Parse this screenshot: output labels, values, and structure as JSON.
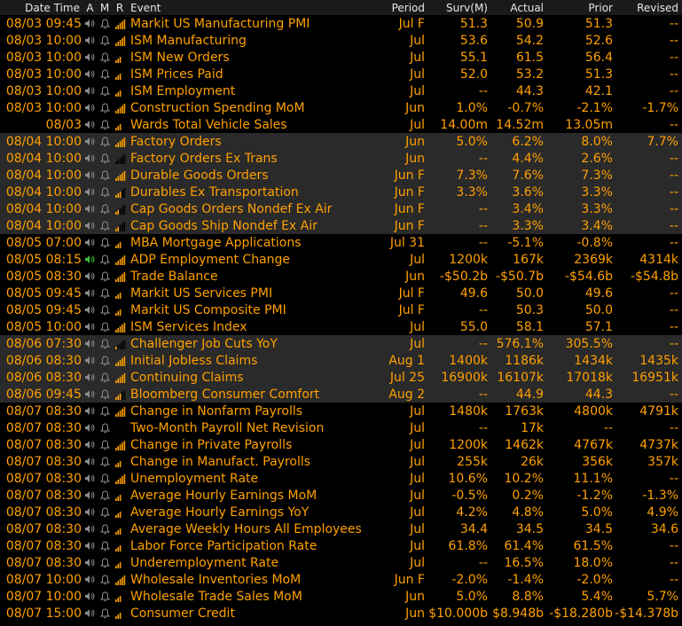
{
  "header": {
    "date_time": "Date Time",
    "a": "A",
    "m": "M",
    "r": "R",
    "event": "Event",
    "period": "Period",
    "surv": "Surv(M)",
    "actual": "Actual",
    "prior": "Prior",
    "revised": "Revised"
  },
  "colors": {
    "text": "#ffa000",
    "header_text": "#e6e6e6",
    "alt_row_bg": "#2a2a2a",
    "icon_grey": "#8c8c8c",
    "speaker_active": "#3ec23e"
  },
  "rows": [
    {
      "date": "08/03 09:45",
      "event": "Markit US Manufacturing PMI",
      "period": "Jul F",
      "surv": "51.3",
      "actual": "50.9",
      "prior": "51.3",
      "revised": "--",
      "bars": 5,
      "alt": false,
      "speaker_active": false
    },
    {
      "date": "08/03 10:00",
      "event": "ISM Manufacturing",
      "period": "Jul",
      "surv": "53.6",
      "actual": "54.2",
      "prior": "52.6",
      "revised": "--",
      "bars": 5,
      "alt": false,
      "speaker_active": false
    },
    {
      "date": "08/03 10:00",
      "event": "ISM New Orders",
      "period": "Jul",
      "surv": "55.1",
      "actual": "61.5",
      "prior": "56.4",
      "revised": "--",
      "bars": 3,
      "alt": false,
      "speaker_active": false
    },
    {
      "date": "08/03 10:00",
      "event": "ISM Prices Paid",
      "period": "Jul",
      "surv": "52.0",
      "actual": "53.2",
      "prior": "51.3",
      "revised": "--",
      "bars": 3,
      "alt": false,
      "speaker_active": false
    },
    {
      "date": "08/03 10:00",
      "event": "ISM Employment",
      "period": "Jul",
      "surv": "--",
      "actual": "44.3",
      "prior": "42.1",
      "revised": "--",
      "bars": 3,
      "alt": false,
      "speaker_active": false
    },
    {
      "date": "08/03 10:00",
      "event": "Construction Spending MoM",
      "period": "Jun",
      "surv": "1.0%",
      "actual": "-0.7%",
      "prior": "-2.1%",
      "revised": "-1.7%",
      "bars": 5,
      "alt": false,
      "speaker_active": false
    },
    {
      "date": "08/03",
      "event": "Wards Total Vehicle Sales",
      "period": "Jul",
      "surv": "14.00m",
      "actual": "14.52m",
      "prior": "13.05m",
      "revised": "--",
      "bars": 3,
      "alt": false,
      "speaker_active": false
    },
    {
      "date": "08/04 10:00",
      "event": "Factory Orders",
      "period": "Jun",
      "surv": "5.0%",
      "actual": "6.2%",
      "prior": "8.0%",
      "revised": "7.7%",
      "bars": 5,
      "alt": true,
      "speaker_active": false
    },
    {
      "date": "08/04 10:00",
      "event": "Factory Orders Ex Trans",
      "period": "Jun",
      "surv": "--",
      "actual": "4.4%",
      "prior": "2.6%",
      "revised": "--",
      "bars": 0,
      "alt": true,
      "speaker_active": false
    },
    {
      "date": "08/04 10:00",
      "event": "Durable Goods Orders",
      "period": "Jun F",
      "surv": "7.3%",
      "actual": "7.6%",
      "prior": "7.3%",
      "revised": "--",
      "bars": 5,
      "alt": true,
      "speaker_active": false
    },
    {
      "date": "08/04 10:00",
      "event": "Durables Ex Transportation",
      "period": "Jun F",
      "surv": "3.3%",
      "actual": "3.6%",
      "prior": "3.3%",
      "revised": "--",
      "bars": 3,
      "alt": true,
      "speaker_active": false
    },
    {
      "date": "08/04 10:00",
      "event": "Cap Goods Orders Nondef Ex Air",
      "period": "Jun F",
      "surv": "--",
      "actual": "3.4%",
      "prior": "3.3%",
      "revised": "--",
      "bars": 2,
      "alt": true,
      "speaker_active": false
    },
    {
      "date": "08/04 10:00",
      "event": "Cap Goods Ship Nondef Ex Air",
      "period": "Jun F",
      "surv": "--",
      "actual": "3.3%",
      "prior": "3.4%",
      "revised": "--",
      "bars": 2,
      "alt": true,
      "speaker_active": false
    },
    {
      "date": "08/05 07:00",
      "event": "MBA Mortgage Applications",
      "period": "Jul 31",
      "surv": "--",
      "actual": "-5.1%",
      "prior": "-0.8%",
      "revised": "--",
      "bars": 3,
      "alt": false,
      "speaker_active": false
    },
    {
      "date": "08/05 08:15",
      "event": "ADP Employment Change",
      "period": "Jul",
      "surv": "1200k",
      "actual": "167k",
      "prior": "2369k",
      "revised": "4314k",
      "bars": 5,
      "alt": false,
      "speaker_active": true
    },
    {
      "date": "08/05 08:30",
      "event": "Trade Balance",
      "period": "Jun",
      "surv": "-$50.2b",
      "actual": "-$50.7b",
      "prior": "-$54.6b",
      "revised": "-$54.8b",
      "bars": 5,
      "alt": false,
      "speaker_active": false
    },
    {
      "date": "08/05 09:45",
      "event": "Markit US Services PMI",
      "period": "Jul F",
      "surv": "49.6",
      "actual": "50.0",
      "prior": "49.6",
      "revised": "--",
      "bars": 3,
      "alt": false,
      "speaker_active": false
    },
    {
      "date": "08/05 09:45",
      "event": "Markit US Composite PMI",
      "period": "Jul F",
      "surv": "--",
      "actual": "50.3",
      "prior": "50.0",
      "revised": "--",
      "bars": 3,
      "alt": false,
      "speaker_active": false
    },
    {
      "date": "08/05 10:00",
      "event": "ISM Services Index",
      "period": "Jul",
      "surv": "55.0",
      "actual": "58.1",
      "prior": "57.1",
      "revised": "--",
      "bars": 5,
      "alt": false,
      "speaker_active": false
    },
    {
      "date": "08/06 07:30",
      "event": "Challenger Job Cuts YoY",
      "period": "Jul",
      "surv": "--",
      "actual": "576.1%",
      "prior": "305.5%",
      "revised": "--",
      "bars": 1,
      "alt": true,
      "speaker_active": false
    },
    {
      "date": "08/06 08:30",
      "event": "Initial Jobless Claims",
      "period": "Aug 1",
      "surv": "1400k",
      "actual": "1186k",
      "prior": "1434k",
      "revised": "1435k",
      "bars": 5,
      "alt": true,
      "speaker_active": false
    },
    {
      "date": "08/06 08:30",
      "event": "Continuing Claims",
      "period": "Jul 25",
      "surv": "16900k",
      "actual": "16107k",
      "prior": "17018k",
      "revised": "16951k",
      "bars": 5,
      "alt": true,
      "speaker_active": false
    },
    {
      "date": "08/06 09:45",
      "event": "Bloomberg Consumer Comfort",
      "period": "Aug 2",
      "surv": "--",
      "actual": "44.9",
      "prior": "44.3",
      "revised": "--",
      "bars": 3,
      "alt": true,
      "speaker_active": false
    },
    {
      "date": "08/07 08:30",
      "event": "Change in Nonfarm Payrolls",
      "period": "Jul",
      "surv": "1480k",
      "actual": "1763k",
      "prior": "4800k",
      "revised": "4791k",
      "bars": 5,
      "alt": false,
      "speaker_active": false
    },
    {
      "date": "08/07 08:30",
      "event": "Two-Month Payroll Net Revision",
      "period": "Jul",
      "surv": "--",
      "actual": "17k",
      "prior": "--",
      "revised": "--",
      "bars": 0,
      "alt": false,
      "speaker_active": false
    },
    {
      "date": "08/07 08:30",
      "event": "Change in Private Payrolls",
      "period": "Jul",
      "surv": "1200k",
      "actual": "1462k",
      "prior": "4767k",
      "revised": "4737k",
      "bars": 5,
      "alt": false,
      "speaker_active": false
    },
    {
      "date": "08/07 08:30",
      "event": "Change in Manufact. Payrolls",
      "period": "Jul",
      "surv": "255k",
      "actual": "26k",
      "prior": "356k",
      "revised": "357k",
      "bars": 3,
      "alt": false,
      "speaker_active": false
    },
    {
      "date": "08/07 08:30",
      "event": "Unemployment Rate",
      "period": "Jul",
      "surv": "10.6%",
      "actual": "10.2%",
      "prior": "11.1%",
      "revised": "--",
      "bars": 5,
      "alt": false,
      "speaker_active": false
    },
    {
      "date": "08/07 08:30",
      "event": "Average Hourly Earnings MoM",
      "period": "Jul",
      "surv": "-0.5%",
      "actual": "0.2%",
      "prior": "-1.2%",
      "revised": "-1.3%",
      "bars": 3,
      "alt": false,
      "speaker_active": false
    },
    {
      "date": "08/07 08:30",
      "event": "Average Hourly Earnings YoY",
      "period": "Jul",
      "surv": "4.2%",
      "actual": "4.8%",
      "prior": "5.0%",
      "revised": "4.9%",
      "bars": 3,
      "alt": false,
      "speaker_active": false
    },
    {
      "date": "08/07 08:30",
      "event": "Average Weekly Hours All Employees",
      "period": "Jul",
      "surv": "34.4",
      "actual": "34.5",
      "prior": "34.5",
      "revised": "34.6",
      "bars": 3,
      "alt": false,
      "speaker_active": false
    },
    {
      "date": "08/07 08:30",
      "event": "Labor Force Participation Rate",
      "period": "Jul",
      "surv": "61.8%",
      "actual": "61.4%",
      "prior": "61.5%",
      "revised": "--",
      "bars": 3,
      "alt": false,
      "speaker_active": false
    },
    {
      "date": "08/07 08:30",
      "event": "Underemployment Rate",
      "period": "Jul",
      "surv": "--",
      "actual": "16.5%",
      "prior": "18.0%",
      "revised": "--",
      "bars": 3,
      "alt": false,
      "speaker_active": false
    },
    {
      "date": "08/07 10:00",
      "event": "Wholesale Inventories MoM",
      "period": "Jun F",
      "surv": "-2.0%",
      "actual": "-1.4%",
      "prior": "-2.0%",
      "revised": "--",
      "bars": 5,
      "alt": false,
      "speaker_active": false
    },
    {
      "date": "08/07 10:00",
      "event": "Wholesale Trade Sales MoM",
      "period": "Jun",
      "surv": "5.0%",
      "actual": "8.8%",
      "prior": "5.4%",
      "revised": "5.7%",
      "bars": 3,
      "alt": false,
      "speaker_active": false
    },
    {
      "date": "08/07 15:00",
      "event": "Consumer Credit",
      "period": "Jun",
      "surv": "$10.000b",
      "actual": "$8.948b",
      "prior": "-$18.280b",
      "revised": "-$14.378b",
      "bars": 3,
      "alt": false,
      "speaker_active": false
    }
  ]
}
